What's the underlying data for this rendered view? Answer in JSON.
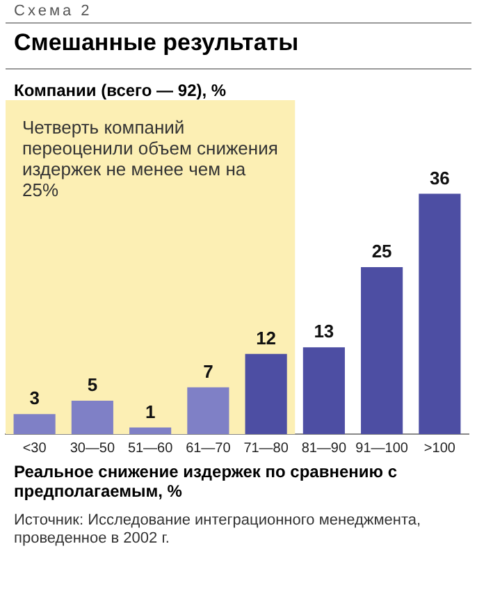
{
  "chart_data": {
    "type": "bar",
    "title": "Смешанные результаты",
    "subtitle": "Компании (всего — 92), %",
    "xlabel": "Реальное снижение издержек по сравнению с предполагаемым, %",
    "annotations": [
      "Схема 2",
      "Источник: Исследование интеграционного менеджмента, проведенное в 2002 г."
    ],
    "categories": [
      "<30",
      "30—50",
      "51—60",
      "61—70",
      "71—80",
      "81—90",
      "91—100",
      ">100"
    ],
    "values": [
      3,
      5,
      1,
      7,
      12,
      13,
      25,
      36
    ],
    "colors": [
      "#7f80c6",
      "#7f80c6",
      "#7f80c6",
      "#7f80c6",
      "#4d4ea3",
      "#4d4ea3",
      "#4d4ea3",
      "#4d4ea3"
    ],
    "bands": [
      {
        "axis": "x",
        "from": "<30",
        "to": "71—80",
        "label": "Четверть компаний переоценили объем снижения издержек не менее чем на 25%",
        "color": "#fcefb4"
      }
    ],
    "data_labels": true,
    "grid": false,
    "legend": false
  }
}
